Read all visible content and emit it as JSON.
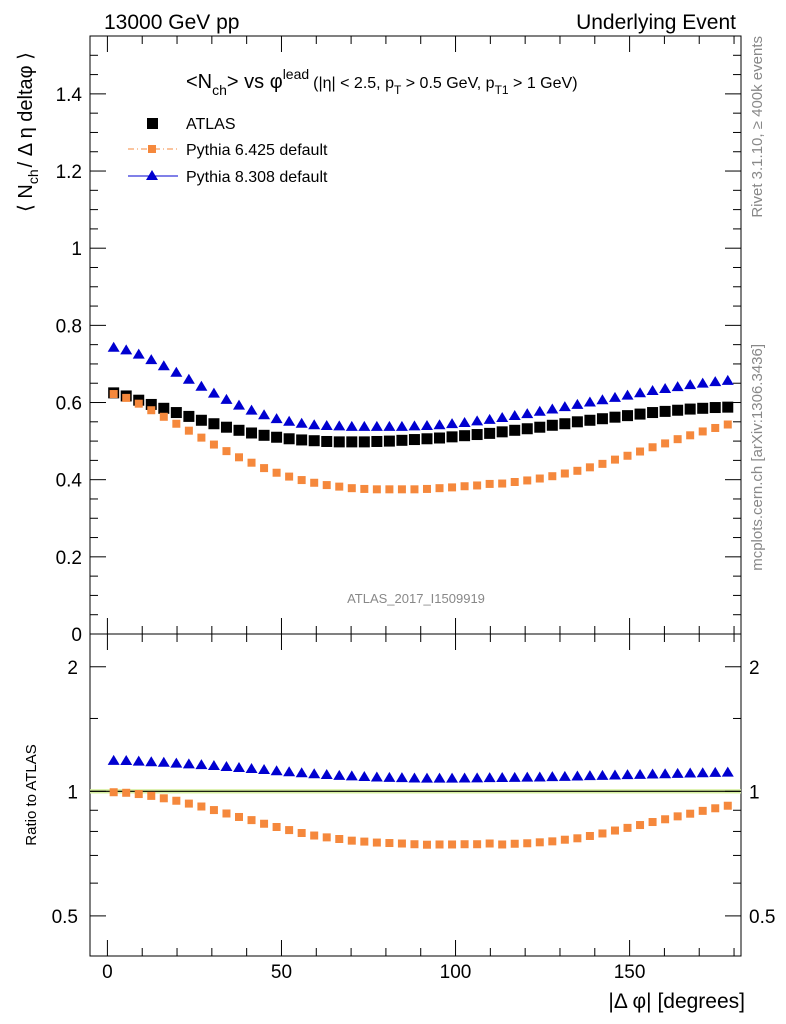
{
  "header": {
    "left": "13000 GeV pp",
    "right": "Underlying Event"
  },
  "side": {
    "rivet": "Rivet 3.1.10, ≥ 400k events",
    "mcplots": "mcplots.cern.ch [arXiv:1306.3436]"
  },
  "plot_title": {
    "main": "<N",
    "main_sub": "ch",
    "vs": "> vs φ",
    "vs_sup": "lead",
    "cuts_a": "(|η| < 2.5, p",
    "cuts_a_sub": "T",
    "cuts_b": " > 0.5 GeV, p",
    "cuts_b_sub": "T1",
    "cuts_c": " > 1 GeV)"
  },
  "y_label_main": {
    "a": "⟨ N",
    "a_sub": "ch",
    "b": "/ Δ η deltaφ ⟩"
  },
  "y_label_ratio": "Ratio to ATLAS",
  "x_label": "|Δ φ| [degrees]",
  "analysis_id": "ATLAS_2017_I1509919",
  "chart_data": [
    {
      "type": "scatter",
      "panel": "main",
      "ylim": [
        0,
        1.55
      ],
      "xlim": [
        -5,
        182
      ],
      "yticks": [
        0,
        0.2,
        0.4,
        0.6,
        0.8,
        1,
        1.2,
        1.4
      ],
      "ytick_labels": [
        "0",
        "0.2",
        "0.4",
        "0.6",
        "0.8",
        "1",
        "1.2",
        "1.4"
      ],
      "x": [
        1.8,
        5.4,
        9,
        12.6,
        16.2,
        19.8,
        23.4,
        27,
        30.6,
        34.2,
        37.8,
        41.4,
        45,
        48.6,
        52.2,
        55.8,
        59.4,
        63,
        66.6,
        70.2,
        73.8,
        77.4,
        81,
        84.6,
        88.2,
        91.8,
        95.4,
        99,
        102.6,
        106.2,
        109.8,
        113.4,
        117,
        120.6,
        124.2,
        127.8,
        131.4,
        135,
        138.6,
        142.2,
        145.8,
        149.4,
        153,
        156.6,
        160.2,
        163.8,
        167.4,
        171,
        174.6,
        178.2
      ],
      "series": [
        {
          "name": "ATLAS",
          "color": "#000000",
          "marker": "square",
          "values": [
            0.625,
            0.617,
            0.606,
            0.595,
            0.585,
            0.574,
            0.564,
            0.554,
            0.545,
            0.536,
            0.528,
            0.521,
            0.515,
            0.51,
            0.506,
            0.503,
            0.501,
            0.499,
            0.498,
            0.498,
            0.498,
            0.499,
            0.5,
            0.502,
            0.504,
            0.506,
            0.508,
            0.511,
            0.514,
            0.517,
            0.52,
            0.524,
            0.528,
            0.532,
            0.536,
            0.541,
            0.545,
            0.55,
            0.554,
            0.558,
            0.562,
            0.566,
            0.57,
            0.574,
            0.577,
            0.58,
            0.583,
            0.585,
            0.587,
            0.588
          ]
        },
        {
          "name": "Pythia 6.425 default",
          "color": "#f5883c",
          "marker": "square",
          "line": "dash-dot",
          "values": [
            0.622,
            0.612,
            0.597,
            0.58,
            0.563,
            0.545,
            0.527,
            0.509,
            0.491,
            0.474,
            0.458,
            0.444,
            0.43,
            0.418,
            0.408,
            0.399,
            0.392,
            0.386,
            0.382,
            0.378,
            0.376,
            0.375,
            0.375,
            0.375,
            0.375,
            0.376,
            0.378,
            0.38,
            0.383,
            0.385,
            0.389,
            0.39,
            0.394,
            0.398,
            0.403,
            0.409,
            0.416,
            0.423,
            0.432,
            0.441,
            0.452,
            0.462,
            0.473,
            0.484,
            0.494,
            0.505,
            0.515,
            0.525,
            0.534,
            0.543
          ]
        },
        {
          "name": "Pythia 8.308 default",
          "color": "#0000d0",
          "marker": "triangle",
          "line": "solid",
          "values": [
            0.742,
            0.735,
            0.724,
            0.71,
            0.694,
            0.677,
            0.659,
            0.641,
            0.623,
            0.607,
            0.592,
            0.579,
            0.567,
            0.557,
            0.55,
            0.545,
            0.541,
            0.539,
            0.538,
            0.537,
            0.537,
            0.537,
            0.537,
            0.537,
            0.538,
            0.539,
            0.541,
            0.544,
            0.547,
            0.551,
            0.555,
            0.56,
            0.565,
            0.57,
            0.576,
            0.582,
            0.588,
            0.594,
            0.6,
            0.606,
            0.612,
            0.618,
            0.624,
            0.63,
            0.635,
            0.64,
            0.645,
            0.649,
            0.653,
            0.656
          ]
        }
      ]
    },
    {
      "type": "scatter",
      "panel": "ratio",
      "ylim": [
        0.4,
        2.4
      ],
      "ylog": true,
      "xlim": [
        -5,
        182
      ],
      "yticks": [
        0.5,
        1,
        2
      ],
      "ytick_labels": [
        "0.5",
        "1",
        "2"
      ],
      "xticks": [
        0,
        50,
        100,
        150
      ],
      "xtick_labels": [
        "0",
        "50",
        "100",
        "150"
      ],
      "x": [
        1.8,
        5.4,
        9,
        12.6,
        16.2,
        19.8,
        23.4,
        27,
        30.6,
        34.2,
        37.8,
        41.4,
        45,
        48.6,
        52.2,
        55.8,
        59.4,
        63,
        66.6,
        70.2,
        73.8,
        77.4,
        81,
        84.6,
        88.2,
        91.8,
        95.4,
        99,
        102.6,
        106.2,
        109.8,
        113.4,
        117,
        120.6,
        124.2,
        127.8,
        131.4,
        135,
        138.6,
        142.2,
        145.8,
        149.4,
        153,
        156.6,
        160.2,
        163.8,
        167.4,
        171,
        174.6,
        178.2
      ],
      "series": [
        {
          "name": "Pythia 6.425 default",
          "color": "#f5883c",
          "marker": "square",
          "values": [
            0.995,
            0.992,
            0.985,
            0.975,
            0.962,
            0.949,
            0.934,
            0.919,
            0.901,
            0.884,
            0.867,
            0.852,
            0.835,
            0.82,
            0.806,
            0.793,
            0.782,
            0.774,
            0.767,
            0.76,
            0.756,
            0.752,
            0.75,
            0.748,
            0.745,
            0.743,
            0.744,
            0.744,
            0.745,
            0.745,
            0.748,
            0.744,
            0.747,
            0.749,
            0.753,
            0.757,
            0.764,
            0.77,
            0.78,
            0.791,
            0.804,
            0.816,
            0.829,
            0.843,
            0.856,
            0.87,
            0.883,
            0.897,
            0.91,
            0.923
          ]
        },
        {
          "name": "Pythia 8.308 default",
          "color": "#0000d0",
          "marker": "triangle",
          "values": [
            1.185,
            1.184,
            1.18,
            1.176,
            1.172,
            1.167,
            1.162,
            1.157,
            1.151,
            1.145,
            1.139,
            1.132,
            1.126,
            1.118,
            1.112,
            1.106,
            1.1,
            1.095,
            1.09,
            1.087,
            1.083,
            1.08,
            1.078,
            1.076,
            1.074,
            1.073,
            1.073,
            1.073,
            1.074,
            1.075,
            1.076,
            1.077,
            1.078,
            1.079,
            1.08,
            1.082,
            1.084,
            1.086,
            1.088,
            1.09,
            1.092,
            1.094,
            1.096,
            1.098,
            1.1,
            1.102,
            1.104,
            1.106,
            1.108,
            1.11
          ]
        }
      ]
    }
  ]
}
